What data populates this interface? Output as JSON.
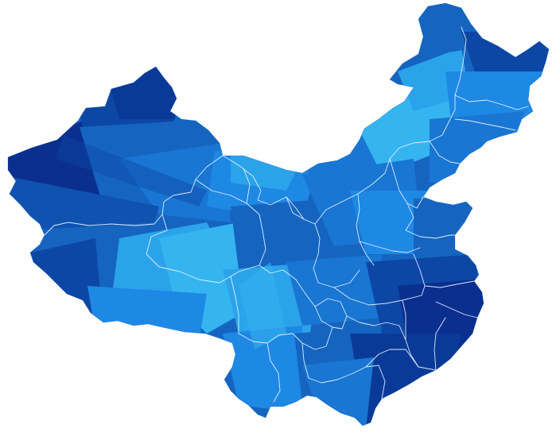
{
  "map": {
    "palette": {
      "deep": "#0a2f8f",
      "dark": "#0d47a6",
      "mid": "#1565c0",
      "medium": "#1976d2",
      "bright": "#1e88e5",
      "light": "#2ba3ea",
      "sky": "#35b5f0",
      "border": "#e8f2ff",
      "background": "#ffffff"
    }
  }
}
